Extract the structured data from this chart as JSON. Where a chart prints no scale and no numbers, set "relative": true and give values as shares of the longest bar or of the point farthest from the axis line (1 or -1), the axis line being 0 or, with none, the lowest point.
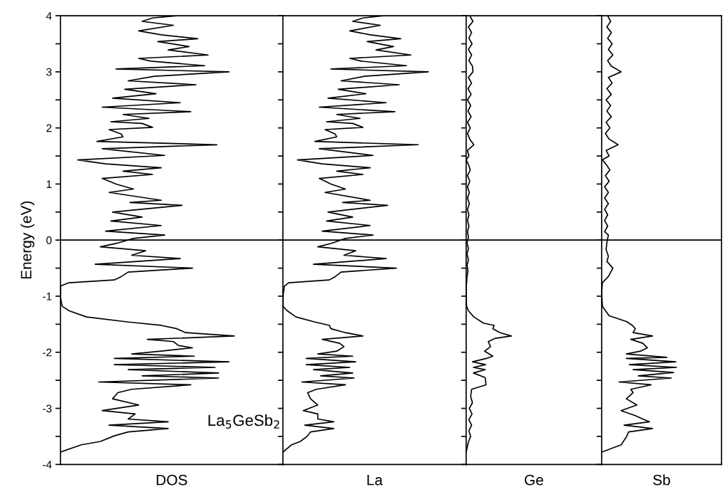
{
  "chart_data": [
    {
      "type": "line",
      "orientation": "horizontal",
      "relative": true,
      "xlabel": "DOS",
      "ylabel": "Energy (eV)",
      "annotations": [
        "La$_{5}$GeSb$_{2}$"
      ],
      "ylim": [
        -4,
        4
      ],
      "yticks": [
        -4,
        {
          "value": -3.5,
          "label": null
        },
        -3,
        {
          "value": -2.5,
          "label": null
        },
        -2,
        {
          "value": -1.5,
          "label": null
        },
        -1,
        {
          "value": -0.5,
          "label": null
        },
        0,
        {
          "value": 0.5,
          "label": null
        },
        1,
        {
          "value": 1.5,
          "label": null
        },
        2,
        {
          "value": 2.5,
          "label": null
        },
        3,
        {
          "value": 3.5,
          "label": null
        },
        4
      ],
      "ref_lines": [
        {
          "axis": "y",
          "value": 0,
          "color": "#000000"
        }
      ],
      "series": [
        {
          "color": "#000000",
          "x": [
            4.0,
            3.96,
            3.9,
            3.83,
            3.73,
            3.66,
            3.59,
            3.54,
            3.45,
            3.39,
            3.3,
            3.24,
            3.19,
            3.11,
            3.05,
            3.0,
            2.92,
            2.84,
            2.77,
            2.69,
            2.61,
            2.53,
            2.45,
            2.37,
            2.29,
            2.24,
            2.17,
            2.11,
            2.08,
            2.01,
            1.97,
            1.89,
            1.84,
            1.76,
            1.7,
            1.63,
            1.51,
            1.43,
            1.36,
            1.29,
            1.23,
            1.17,
            1.1,
            1.0,
            0.91,
            0.85,
            0.71,
            0.67,
            0.62,
            0.5,
            0.41,
            0.34,
            0.26,
            0.16,
            0.09,
            0.03,
            -0.06,
            -0.12,
            -0.19,
            -0.27,
            -0.33,
            -0.43,
            -0.5,
            -0.57,
            -0.65,
            -0.71,
            -0.76,
            -0.82,
            -1.01,
            -1.18,
            -1.26,
            -1.37,
            -1.46,
            -1.52,
            -1.58,
            -1.65,
            -1.71,
            -1.77,
            -1.81,
            -1.88,
            -1.92,
            -1.98,
            -2.03,
            -2.07,
            -2.11,
            -2.17,
            -2.22,
            -2.27,
            -2.31,
            -2.37,
            -2.42,
            -2.46,
            -2.53,
            -2.58,
            -2.66,
            -2.72,
            -2.83,
            -2.94,
            -3.04,
            -3.1,
            -3.19,
            -3.24,
            -3.3,
            -3.36,
            -3.42,
            -3.49,
            -3.59,
            -3.65,
            -3.78
          ],
          "values": [
            0.67,
            0.53,
            0.47,
            0.65,
            0.45,
            0.58,
            0.79,
            0.56,
            0.74,
            0.62,
            0.85,
            0.45,
            0.52,
            0.83,
            0.32,
            0.97,
            0.54,
            0.39,
            0.78,
            0.37,
            0.55,
            0.3,
            0.69,
            0.24,
            0.75,
            0.36,
            0.51,
            0.29,
            0.47,
            0.53,
            0.28,
            0.35,
            0.36,
            0.21,
            0.9,
            0.24,
            0.6,
            0.1,
            0.26,
            0.58,
            0.36,
            0.53,
            0.24,
            0.32,
            0.42,
            0.28,
            0.58,
            0.4,
            0.7,
            0.3,
            0.47,
            0.29,
            0.58,
            0.26,
            0.6,
            0.42,
            0.32,
            0.23,
            0.49,
            0.41,
            0.69,
            0.2,
            0.76,
            0.39,
            0.35,
            0.31,
            0.05,
            0.0,
            0.0,
            0.01,
            0.05,
            0.15,
            0.39,
            0.58,
            0.67,
            0.72,
            1.0,
            0.5,
            0.65,
            0.68,
            0.76,
            0.58,
            0.41,
            0.77,
            0.31,
            0.97,
            0.31,
            0.89,
            0.39,
            0.91,
            0.47,
            0.91,
            0.22,
            0.75,
            0.41,
            0.33,
            0.3,
            0.45,
            0.24,
            0.43,
            0.39,
            0.62,
            0.28,
            0.62,
            0.39,
            0.31,
            0.23,
            0.12,
            0.0
          ]
        }
      ]
    },
    {
      "type": "line",
      "orientation": "horizontal",
      "relative": true,
      "xlabel": "La",
      "tick_labels": false,
      "ylim": [
        -4,
        4
      ],
      "yticks": [
        -4,
        {
          "value": -3.5,
          "label": null
        },
        -3,
        {
          "value": -2.5,
          "label": null
        },
        -2,
        {
          "value": -1.5,
          "label": null
        },
        -1,
        {
          "value": -0.5,
          "label": null
        },
        0,
        {
          "value": 0.5,
          "label": null
        },
        1,
        {
          "value": 1.5,
          "label": null
        },
        2,
        {
          "value": 2.5,
          "label": null
        },
        3,
        {
          "value": 3.5,
          "label": null
        },
        4
      ],
      "ref_lines": [
        {
          "axis": "y",
          "value": 0,
          "color": "#000000"
        }
      ],
      "series": [
        {
          "color": "#000000",
          "x": [
            4.0,
            3.96,
            3.9,
            3.83,
            3.73,
            3.66,
            3.59,
            3.54,
            3.45,
            3.39,
            3.3,
            3.24,
            3.19,
            3.11,
            3.05,
            3.0,
            2.92,
            2.84,
            2.77,
            2.69,
            2.61,
            2.53,
            2.45,
            2.37,
            2.29,
            2.24,
            2.17,
            2.11,
            2.08,
            2.01,
            1.97,
            1.89,
            1.84,
            1.76,
            1.7,
            1.63,
            1.51,
            1.43,
            1.36,
            1.29,
            1.23,
            1.17,
            1.1,
            1.0,
            0.91,
            0.85,
            0.71,
            0.67,
            0.62,
            0.5,
            0.41,
            0.34,
            0.26,
            0.16,
            0.09,
            0.03,
            -0.06,
            -0.12,
            -0.19,
            -0.27,
            -0.33,
            -0.43,
            -0.5,
            -0.57,
            -0.65,
            -0.71,
            -0.76,
            -0.82,
            -1.01,
            -1.18,
            -1.26,
            -1.37,
            -1.46,
            -1.52,
            -1.58,
            -1.65,
            -1.71,
            -1.77,
            -1.84,
            -1.9,
            -1.98,
            -2.03,
            -2.07,
            -2.11,
            -2.17,
            -2.22,
            -2.27,
            -2.31,
            -2.37,
            -2.42,
            -2.46,
            -2.53,
            -2.58,
            -2.66,
            -2.72,
            -2.83,
            -2.94,
            -3.04,
            -3.1,
            -3.19,
            -3.24,
            -3.3,
            -3.36,
            -3.42,
            -3.49,
            -3.59,
            -3.65,
            -3.78
          ],
          "values": [
            0.69,
            0.55,
            0.48,
            0.67,
            0.46,
            0.6,
            0.81,
            0.58,
            0.76,
            0.64,
            0.88,
            0.46,
            0.54,
            0.85,
            0.33,
            1.0,
            0.56,
            0.4,
            0.8,
            0.38,
            0.57,
            0.31,
            0.71,
            0.25,
            0.77,
            0.37,
            0.53,
            0.3,
            0.48,
            0.55,
            0.29,
            0.36,
            0.37,
            0.22,
            0.93,
            0.25,
            0.62,
            0.1,
            0.27,
            0.6,
            0.37,
            0.55,
            0.25,
            0.33,
            0.43,
            0.29,
            0.6,
            0.41,
            0.72,
            0.31,
            0.48,
            0.3,
            0.6,
            0.27,
            0.62,
            0.43,
            0.33,
            0.24,
            0.5,
            0.42,
            0.71,
            0.21,
            0.78,
            0.4,
            0.36,
            0.32,
            0.04,
            0.01,
            0.0,
            0.0,
            0.03,
            0.09,
            0.22,
            0.32,
            0.33,
            0.43,
            0.55,
            0.27,
            0.39,
            0.42,
            0.37,
            0.24,
            0.48,
            0.16,
            0.5,
            0.16,
            0.46,
            0.21,
            0.48,
            0.26,
            0.49,
            0.13,
            0.43,
            0.23,
            0.17,
            0.19,
            0.24,
            0.14,
            0.24,
            0.24,
            0.35,
            0.15,
            0.35,
            0.19,
            0.17,
            0.12,
            0.06,
            0.0
          ]
        }
      ]
    },
    {
      "type": "line",
      "orientation": "horizontal",
      "relative": true,
      "xlabel": "Ge",
      "tick_labels": false,
      "ylim": [
        -4,
        4
      ],
      "yticks": [
        -4,
        {
          "value": -3.5,
          "label": null
        },
        -3,
        {
          "value": -2.5,
          "label": null
        },
        -2,
        {
          "value": -1.5,
          "label": null
        },
        -1,
        {
          "value": -0.5,
          "label": null
        },
        0,
        {
          "value": 0.5,
          "label": null
        },
        1,
        {
          "value": 1.5,
          "label": null
        },
        2,
        {
          "value": 2.5,
          "label": null
        },
        3,
        {
          "value": 3.5,
          "label": null
        },
        4
      ],
      "ref_lines": [
        {
          "axis": "y",
          "value": 0,
          "color": "#000000"
        }
      ],
      "series": [
        {
          "color": "#000000",
          "x": [
            4.0,
            3.9,
            3.8,
            3.7,
            3.6,
            3.5,
            3.4,
            3.3,
            3.2,
            3.1,
            3.0,
            2.9,
            2.8,
            2.7,
            2.6,
            2.5,
            2.4,
            2.3,
            2.2,
            2.1,
            2.0,
            1.9,
            1.8,
            1.7,
            1.6,
            1.5,
            1.43,
            1.35,
            1.25,
            1.15,
            1.05,
            0.95,
            0.85,
            0.75,
            0.65,
            0.55,
            0.45,
            0.35,
            0.25,
            0.15,
            0.05,
            -0.05,
            -0.15,
            -0.25,
            -0.35,
            -0.45,
            -0.55,
            -0.65,
            -0.76,
            -0.82,
            -1.01,
            -1.18,
            -1.26,
            -1.37,
            -1.48,
            -1.52,
            -1.58,
            -1.65,
            -1.71,
            -1.75,
            -1.81,
            -1.9,
            -1.98,
            -2.07,
            -2.11,
            -2.17,
            -2.22,
            -2.27,
            -2.31,
            -2.37,
            -2.45,
            -2.58,
            -2.66,
            -2.79,
            -2.9,
            -3.0,
            -3.1,
            -3.2,
            -3.3,
            -3.4,
            -3.5,
            -3.6,
            -3.78
          ],
          "values": [
            0.08,
            0.15,
            0.05,
            0.12,
            0.06,
            0.13,
            0.05,
            0.12,
            0.06,
            0.14,
            0.15,
            0.05,
            0.12,
            0.04,
            0.11,
            0.03,
            0.1,
            0.04,
            0.11,
            0.03,
            0.09,
            0.03,
            0.08,
            0.17,
            0.03,
            0.06,
            0.0,
            0.05,
            0.09,
            0.03,
            0.08,
            0.03,
            0.07,
            0.03,
            0.07,
            0.03,
            0.06,
            0.03,
            0.06,
            0.03,
            0.05,
            0.02,
            0.05,
            0.02,
            0.05,
            0.02,
            0.04,
            0.02,
            0.01,
            0.0,
            0.0,
            0.01,
            0.05,
            0.17,
            0.38,
            0.62,
            0.59,
            0.75,
            1.0,
            0.65,
            0.49,
            0.54,
            0.41,
            0.59,
            0.45,
            0.14,
            0.43,
            0.16,
            0.42,
            0.16,
            0.42,
            0.44,
            0.12,
            0.1,
            0.14,
            0.07,
            0.13,
            0.06,
            0.12,
            0.06,
            0.1,
            0.05,
            0.0
          ]
        }
      ]
    },
    {
      "type": "line",
      "orientation": "horizontal",
      "relative": true,
      "xlabel": "Sb",
      "tick_labels": false,
      "ylim": [
        -4,
        4
      ],
      "yticks": [
        -4,
        {
          "value": -3.5,
          "label": null
        },
        -3,
        {
          "value": -2.5,
          "label": null
        },
        -2,
        {
          "value": -1.5,
          "label": null
        },
        -1,
        {
          "value": -0.5,
          "label": null
        },
        0,
        {
          "value": 0.5,
          "label": null
        },
        1,
        {
          "value": 1.5,
          "label": null
        },
        2,
        {
          "value": 2.5,
          "label": null
        },
        3,
        {
          "value": 3.5,
          "label": null
        },
        4
      ],
      "ref_lines": [
        {
          "axis": "y",
          "value": 0,
          "color": "#000000"
        }
      ],
      "series": [
        {
          "color": "#000000",
          "x": [
            4.0,
            3.9,
            3.8,
            3.7,
            3.6,
            3.5,
            3.4,
            3.3,
            3.2,
            3.1,
            3.0,
            2.9,
            2.8,
            2.7,
            2.6,
            2.5,
            2.4,
            2.3,
            2.2,
            2.1,
            2.0,
            1.9,
            1.8,
            1.7,
            1.6,
            1.5,
            1.43,
            1.35,
            1.25,
            1.15,
            1.05,
            0.95,
            0.85,
            0.75,
            0.65,
            0.55,
            0.45,
            0.35,
            0.25,
            0.15,
            0.09,
            -0.04,
            -0.17,
            -0.29,
            -0.38,
            -0.5,
            -0.65,
            -0.76,
            -0.93,
            -1.18,
            -1.35,
            -1.45,
            -1.52,
            -1.58,
            -1.65,
            -1.71,
            -1.77,
            -1.84,
            -1.92,
            -1.98,
            -2.03,
            -2.09,
            -2.11,
            -2.17,
            -2.22,
            -2.27,
            -2.31,
            -2.36,
            -2.42,
            -2.46,
            -2.53,
            -2.58,
            -2.66,
            -2.72,
            -2.83,
            -2.94,
            -3.04,
            -3.13,
            -3.19,
            -3.24,
            -3.3,
            -3.36,
            -3.42,
            -3.51,
            -3.65,
            -3.78
          ],
          "values": [
            0.08,
            0.12,
            0.07,
            0.13,
            0.08,
            0.14,
            0.09,
            0.15,
            0.08,
            0.13,
            0.26,
            0.09,
            0.14,
            0.07,
            0.13,
            0.06,
            0.12,
            0.07,
            0.13,
            0.06,
            0.11,
            0.05,
            0.1,
            0.22,
            0.06,
            0.1,
            0.01,
            0.06,
            0.11,
            0.05,
            0.1,
            0.04,
            0.09,
            0.04,
            0.09,
            0.04,
            0.08,
            0.04,
            0.08,
            0.04,
            0.09,
            0.07,
            0.06,
            0.09,
            0.07,
            0.15,
            0.09,
            0.01,
            0.0,
            0.01,
            0.1,
            0.33,
            0.41,
            0.45,
            0.42,
            0.68,
            0.39,
            0.55,
            0.61,
            0.52,
            0.33,
            0.87,
            0.33,
            0.99,
            0.37,
            1.0,
            0.42,
            0.96,
            0.49,
            0.93,
            0.23,
            0.66,
            0.39,
            0.42,
            0.33,
            0.47,
            0.26,
            0.45,
            0.55,
            0.64,
            0.3,
            0.68,
            0.36,
            0.33,
            0.26,
            0.0
          ]
        }
      ]
    }
  ]
}
